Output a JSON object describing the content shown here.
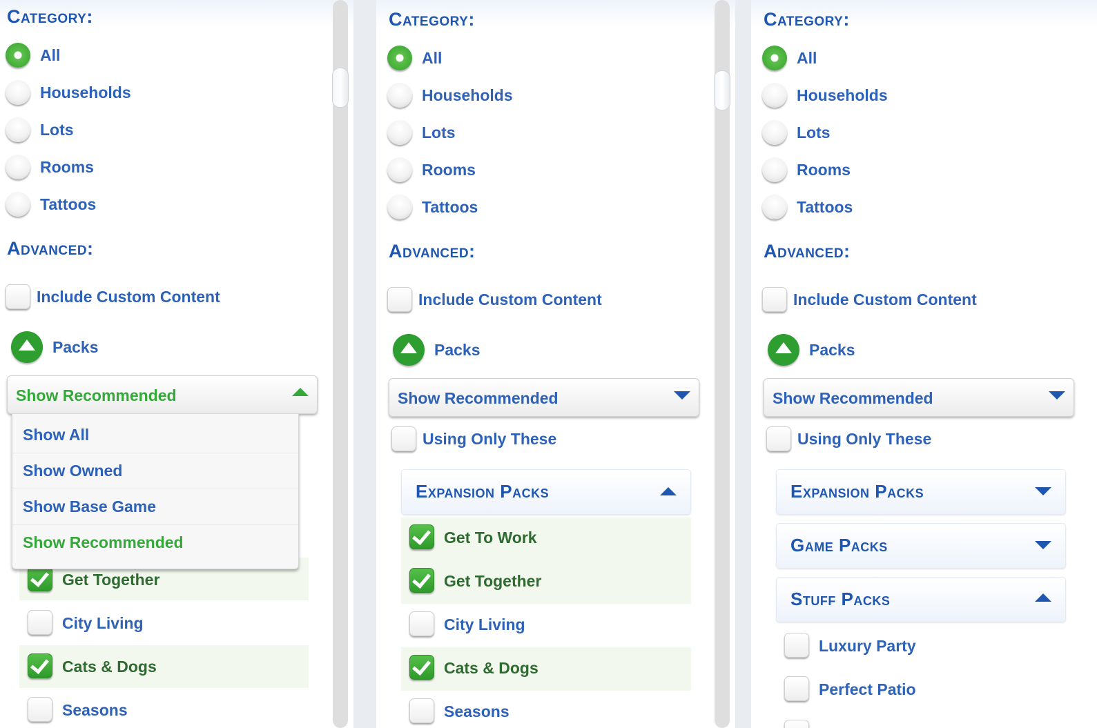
{
  "panels": [
    {
      "category_title": "Category:",
      "categories": [
        {
          "label": "All",
          "selected": true
        },
        {
          "label": "Households",
          "selected": false
        },
        {
          "label": "Lots",
          "selected": false
        },
        {
          "label": "Rooms",
          "selected": false
        },
        {
          "label": "Tattoos",
          "selected": false
        }
      ],
      "advanced_title": "Advanced:",
      "include_custom_content": {
        "label": "Include Custom Content",
        "checked": false
      },
      "packs_label": "Packs",
      "dropdown": {
        "value": "Show Recommended",
        "open": true,
        "options": [
          "Show All",
          "Show Owned",
          "Show Base Game",
          "Show Recommended"
        ]
      },
      "packs": [
        {
          "label": "Get Together",
          "checked": true
        },
        {
          "label": "City Living",
          "checked": false
        },
        {
          "label": "Cats & Dogs",
          "checked": true
        },
        {
          "label": "Seasons",
          "checked": false
        }
      ]
    },
    {
      "category_title": "Category:",
      "categories": [
        {
          "label": "All",
          "selected": true
        },
        {
          "label": "Households",
          "selected": false
        },
        {
          "label": "Lots",
          "selected": false
        },
        {
          "label": "Rooms",
          "selected": false
        },
        {
          "label": "Tattoos",
          "selected": false
        }
      ],
      "advanced_title": "Advanced:",
      "include_custom_content": {
        "label": "Include Custom Content",
        "checked": false
      },
      "packs_label": "Packs",
      "dropdown": {
        "value": "Show Recommended",
        "open": false
      },
      "using_only_these": {
        "label": "Using Only These",
        "checked": false
      },
      "expansion_packs": {
        "title": "Expansion Packs",
        "expanded": true,
        "items": [
          {
            "label": "Get To Work",
            "checked": true
          },
          {
            "label": "Get Together",
            "checked": true
          },
          {
            "label": "City Living",
            "checked": false
          },
          {
            "label": "Cats & Dogs",
            "checked": true
          },
          {
            "label": "Seasons",
            "checked": false
          }
        ]
      }
    },
    {
      "category_title": "Category:",
      "categories": [
        {
          "label": "All",
          "selected": true
        },
        {
          "label": "Households",
          "selected": false
        },
        {
          "label": "Lots",
          "selected": false
        },
        {
          "label": "Rooms",
          "selected": false
        },
        {
          "label": "Tattoos",
          "selected": false
        }
      ],
      "advanced_title": "Advanced:",
      "include_custom_content": {
        "label": "Include Custom Content",
        "checked": false
      },
      "packs_label": "Packs",
      "dropdown": {
        "value": "Show Recommended",
        "open": false
      },
      "using_only_these": {
        "label": "Using Only These",
        "checked": false
      },
      "expansion_packs": {
        "title": "Expansion Packs",
        "expanded": false
      },
      "game_packs": {
        "title": "Game Packs",
        "expanded": false
      },
      "stuff_packs": {
        "title": "Stuff Packs",
        "expanded": true,
        "items": [
          {
            "label": "Luxury Party",
            "checked": false
          },
          {
            "label": "Perfect Patio",
            "checked": false
          }
        ]
      }
    }
  ],
  "colors": {
    "accent_blue": "#1f56b0",
    "accent_green": "#35a83a",
    "checked_text": "#2f6a30"
  }
}
